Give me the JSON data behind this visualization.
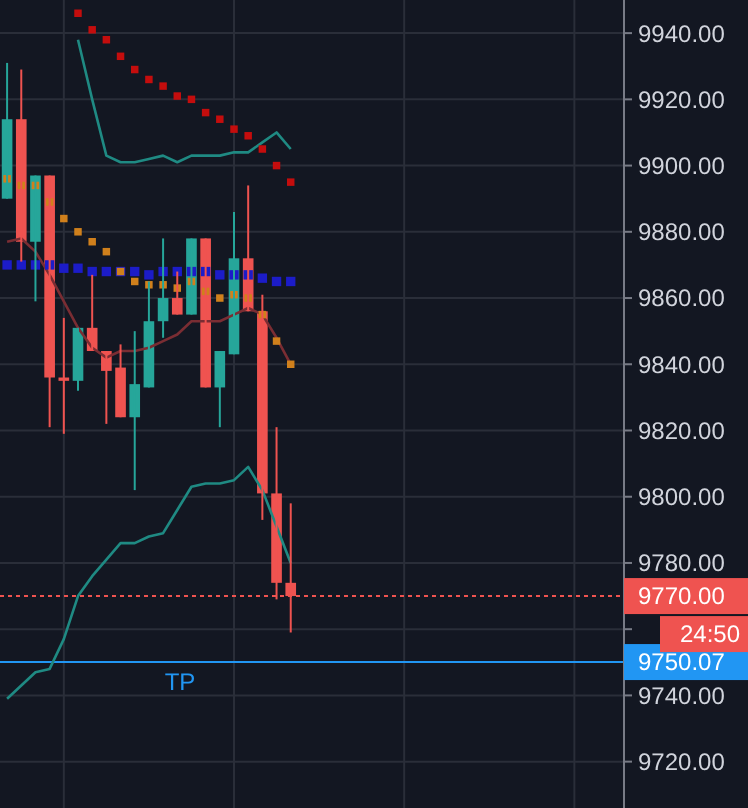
{
  "chart_data": {
    "type": "candlestick",
    "categories": [
      null,
      null,
      null,
      null,
      null,
      null,
      null,
      null,
      null,
      null,
      null,
      null,
      null,
      null,
      null,
      null,
      null,
      null,
      null,
      null,
      null,
      null,
      null,
      null,
      null,
      null,
      null,
      null,
      null,
      null,
      null,
      null,
      null,
      null,
      null,
      null,
      null,
      null,
      null,
      null,
      null,
      null,
      null,
      null
    ],
    "ohlc": [
      [
        9890,
        9931,
        9890,
        9914
      ],
      [
        9914,
        9929,
        9871,
        9877
      ],
      [
        9877,
        9897,
        9859,
        9897
      ],
      [
        9897,
        9897,
        9821,
        9836
      ],
      [
        9836,
        9854,
        9819,
        9835
      ],
      [
        9835,
        9851,
        9832,
        9851
      ],
      [
        9851,
        9867,
        9844,
        9844
      ],
      [
        9844,
        9844,
        9822,
        9838
      ],
      [
        9839,
        9846,
        9824,
        9824
      ],
      [
        9824,
        9850,
        9802,
        9834
      ],
      [
        9833,
        9865,
        9833,
        9853
      ],
      [
        9853,
        9878,
        9848,
        9860
      ],
      [
        9860,
        9868,
        9855,
        9855
      ],
      [
        9855,
        9878,
        9855,
        9878
      ],
      [
        9878,
        9878,
        9833,
        9833
      ],
      [
        9833,
        9844,
        9821,
        9844
      ],
      [
        9843,
        9886,
        9843,
        9872
      ],
      [
        9872,
        9894,
        9856,
        9856
      ],
      [
        9856,
        9861,
        9793,
        9801
      ],
      [
        9801,
        9821,
        9769,
        9774
      ],
      [
        9774,
        9798,
        9759,
        9770
      ],
      null,
      null,
      null,
      null,
      null,
      null,
      null,
      null,
      null,
      null,
      null,
      null,
      null,
      null,
      null,
      null,
      null,
      null,
      null,
      null,
      null,
      null,
      null
    ],
    "colors": [
      "#26a69a",
      "#ef5350",
      "#26a69a",
      "#ef5350",
      "#ef5350",
      "#26a69a",
      "#ef5350",
      "#ef5350",
      "#ef5350",
      "#26a69a",
      "#26a69a",
      "#26a69a",
      "#ef5350",
      "#26a69a",
      "#ef5350",
      "#26a69a",
      "#26a69a",
      "#ef5350",
      "#ef5350",
      "#ef5350",
      "#ef5350",
      null,
      null,
      null,
      null,
      null,
      null,
      null,
      null,
      null,
      null,
      null,
      null,
      null,
      null,
      null,
      null,
      null,
      null,
      null,
      null,
      null,
      null,
      null
    ],
    "series": [
      {
        "type": "line",
        "color": "#1f8a83",
        "values": [
          null,
          null,
          null,
          null,
          null,
          9938,
          9920,
          9903,
          9901,
          9901,
          9902,
          9903,
          9901,
          9903,
          9903,
          9903,
          9904,
          9904,
          9907,
          9910,
          9905,
          null,
          null,
          null,
          null,
          null,
          null,
          null,
          null,
          null,
          null,
          null,
          null,
          null,
          null,
          null,
          null,
          null,
          null,
          null,
          null,
          null,
          null,
          null
        ]
      },
      {
        "type": "line",
        "color": "#7a2d33",
        "values": [
          9877,
          9878,
          9874,
          9867,
          9859,
          9851,
          9845,
          9842,
          9844,
          9844,
          9845,
          9847,
          9849,
          9853,
          9853,
          9853,
          9855,
          9857,
          9855,
          9848,
          9840,
          null,
          null,
          null,
          null,
          null,
          null,
          null,
          null,
          null,
          null,
          null,
          null,
          null,
          null,
          null,
          null,
          null,
          null,
          null,
          null,
          null,
          null,
          null
        ]
      },
      {
        "type": "line",
        "color": "#1f8a83",
        "values": [
          9739,
          9743,
          9747,
          9748,
          9757,
          9770,
          9776,
          9781,
          9786,
          9786,
          9788,
          9789,
          9796,
          9803,
          9804,
          9804,
          9805,
          9809,
          9802,
          9791,
          9780,
          null,
          null,
          null,
          null,
          null,
          null,
          null,
          null,
          null,
          null,
          null,
          null,
          null,
          null,
          null,
          null,
          null,
          null,
          null,
          null,
          null,
          null,
          null
        ]
      },
      {
        "type": "scatter",
        "marker": "square",
        "color": "#c40d0d",
        "values": [
          null,
          null,
          null,
          null,
          null,
          9946,
          9941,
          9938,
          9933,
          9929,
          9926,
          9924,
          9921,
          9920,
          9916,
          9914,
          9911,
          9909,
          9905,
          9900,
          9895,
          null,
          null,
          null,
          null,
          null,
          null,
          null,
          null,
          null,
          null,
          null,
          null,
          null,
          null,
          null,
          null,
          null,
          null,
          null,
          null,
          null,
          null,
          null
        ]
      },
      {
        "type": "scatter",
        "marker": "square",
        "color": "#d0801c",
        "values": [
          9896,
          9894,
          9894,
          9889,
          9884,
          9880,
          9877,
          9874,
          9868,
          9865,
          9864,
          9864,
          9863,
          9865,
          9862,
          9860,
          9861,
          9860,
          9855,
          9847,
          9840,
          null,
          null,
          null,
          null,
          null,
          null,
          null,
          null,
          null,
          null,
          null,
          null,
          null,
          null,
          null,
          null,
          null,
          null,
          null,
          null,
          null,
          null,
          null
        ]
      },
      {
        "type": "scatter",
        "marker": "square",
        "color": "#1c1cc8",
        "values": [
          9870,
          9870,
          9870,
          9870,
          9869,
          9869,
          9868,
          9868,
          9868,
          9868,
          9867,
          9868,
          9868,
          9868,
          9868,
          9867,
          9867,
          9867,
          9866,
          9865,
          9865,
          null,
          null,
          null,
          null,
          null,
          null,
          null,
          null,
          null,
          null,
          null,
          null,
          null,
          null,
          null,
          null,
          null,
          null,
          null,
          null,
          null,
          null,
          null
        ]
      }
    ],
    "ylim": [
      9706,
      9950
    ],
    "yticks": [
      {
        "value": 9720,
        "label": "9720.00"
      },
      {
        "value": 9740,
        "label": "9740.00"
      },
      {
        "value": 9760,
        "label": null
      },
      {
        "value": 9780,
        "label": "9780.00"
      },
      {
        "value": 9800,
        "label": "9800.00"
      },
      {
        "value": 9820,
        "label": "9820.00"
      },
      {
        "value": 9840,
        "label": "9840.00"
      },
      {
        "value": 9860,
        "label": "9860.00"
      },
      {
        "value": 9880,
        "label": "9880.00"
      },
      {
        "value": 9900,
        "label": "9900.00"
      },
      {
        "value": 9920,
        "label": "9920.00"
      },
      {
        "value": 9940,
        "label": "9940.00"
      }
    ],
    "grid": true,
    "tick_labels": "y",
    "ref_lines": [
      {
        "axis": "y",
        "value": 9770,
        "label": "9770.00",
        "color": "#ef5350",
        "line_style": "dotted"
      },
      {
        "axis": "y",
        "value": 9750.07,
        "label": "9750.07",
        "color": "#2196f3",
        "line_style": "solid"
      }
    ],
    "annotations": [
      {
        "text": "TP",
        "y": 9750.07
      },
      "24:50"
    ]
  }
}
